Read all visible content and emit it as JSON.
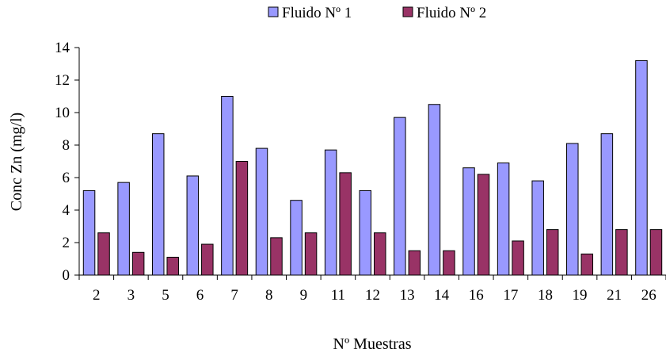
{
  "chart_data": {
    "type": "bar",
    "categories": [
      "2",
      "3",
      "5",
      "6",
      "7",
      "8",
      "9",
      "11",
      "12",
      "13",
      "14",
      "16",
      "17",
      "18",
      "19",
      "21",
      "26"
    ],
    "series": [
      {
        "name": "Fluido Nº 1",
        "color": "#9999ff",
        "values": [
          5.2,
          5.7,
          8.7,
          6.1,
          11.0,
          7.8,
          4.6,
          7.7,
          5.2,
          9.7,
          10.5,
          6.6,
          6.9,
          5.8,
          8.1,
          8.7,
          13.2
        ]
      },
      {
        "name": "Fluido Nº 2",
        "color": "#993366",
        "values": [
          2.6,
          1.4,
          1.1,
          1.9,
          7.0,
          2.3,
          2.6,
          6.3,
          2.6,
          1.5,
          1.5,
          6.2,
          2.1,
          2.8,
          1.3,
          2.8,
          2.8
        ]
      }
    ],
    "xlabel": "Nº Muestras",
    "ylabel": "Conc Zn (mg/l)",
    "ylim": [
      0,
      14
    ],
    "yticks": [
      "0",
      "2",
      "4",
      "6",
      "8",
      "10",
      "12",
      "14"
    ],
    "grid": false,
    "legend": "top-center"
  }
}
